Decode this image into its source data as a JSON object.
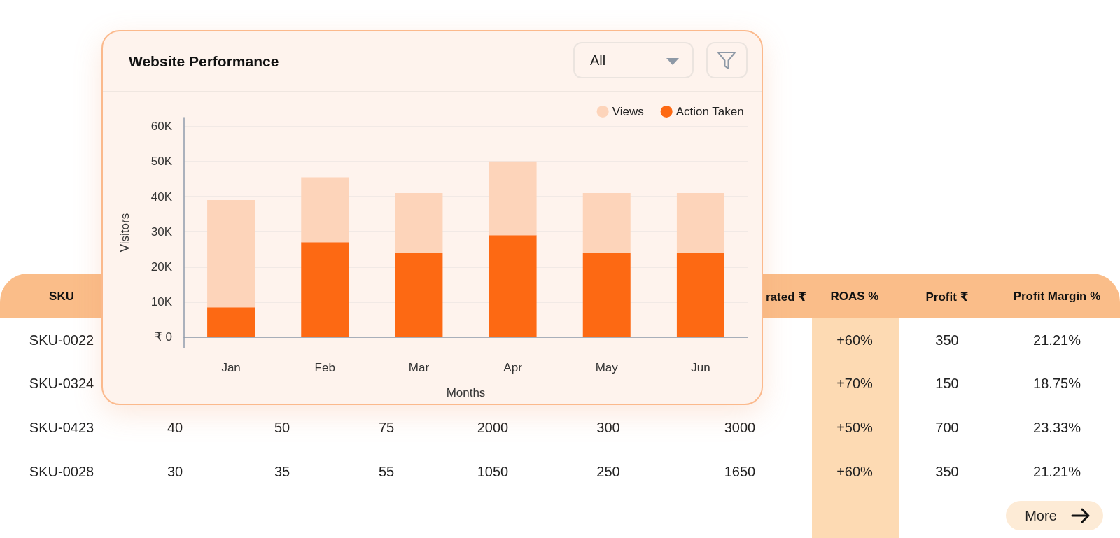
{
  "chart_data": [
    {
      "type": "bar",
      "title": "Website Performance",
      "annotations": [
        "All"
      ],
      "xlabel": "Months",
      "ylabel": "Visitors",
      "categories": [
        "Jan",
        "Feb",
        "Mar",
        "Apr",
        "May",
        "Jun"
      ],
      "series": [
        {
          "name": "Action Taken",
          "color": "#fd6913",
          "values": [
            8500,
            27000,
            24000,
            29000,
            24000,
            24000
          ]
        },
        {
          "name": "Views",
          "color": "#fdd4ba",
          "values": [
            30500,
            18500,
            17000,
            21000,
            17000,
            17000
          ]
        }
      ],
      "stacked": true,
      "ylim": [
        -3000,
        62500
      ],
      "yticks": [
        {
          "value": 0,
          "label": "₹ 0"
        },
        {
          "value": 10000,
          "label": "10K"
        },
        {
          "value": 20000,
          "label": "20K"
        },
        {
          "value": 30000,
          "label": "30K"
        },
        {
          "value": 40000,
          "label": "40K"
        },
        {
          "value": 50000,
          "label": "50K"
        },
        {
          "value": 60000,
          "label": "60K"
        }
      ],
      "grid": "y",
      "legend": "top right"
    },
    {
      "type": "other",
      "categories": [
        "SKU",
        null,
        null,
        null,
        null,
        null,
        "rated ₹",
        "ROAS %",
        "Profit ₹",
        "Profit Margin %"
      ],
      "cell_labels": [
        [
          "SKU-0022",
          null,
          null,
          null,
          null,
          null,
          null,
          "+60%",
          "350",
          "21.21%"
        ],
        [
          "SKU-0324",
          null,
          null,
          null,
          null,
          null,
          null,
          "+70%",
          "150",
          "18.75%"
        ],
        [
          "SKU-0423",
          "40",
          "50",
          "75",
          "2000",
          "300",
          "3000",
          "+50%",
          "700",
          "23.33%"
        ],
        [
          "SKU-0028",
          "30",
          "35",
          "55",
          "1050",
          "250",
          "1650",
          "+60%",
          "350",
          "21.21%"
        ]
      ],
      "annotations": [
        "More"
      ]
    }
  ]
}
